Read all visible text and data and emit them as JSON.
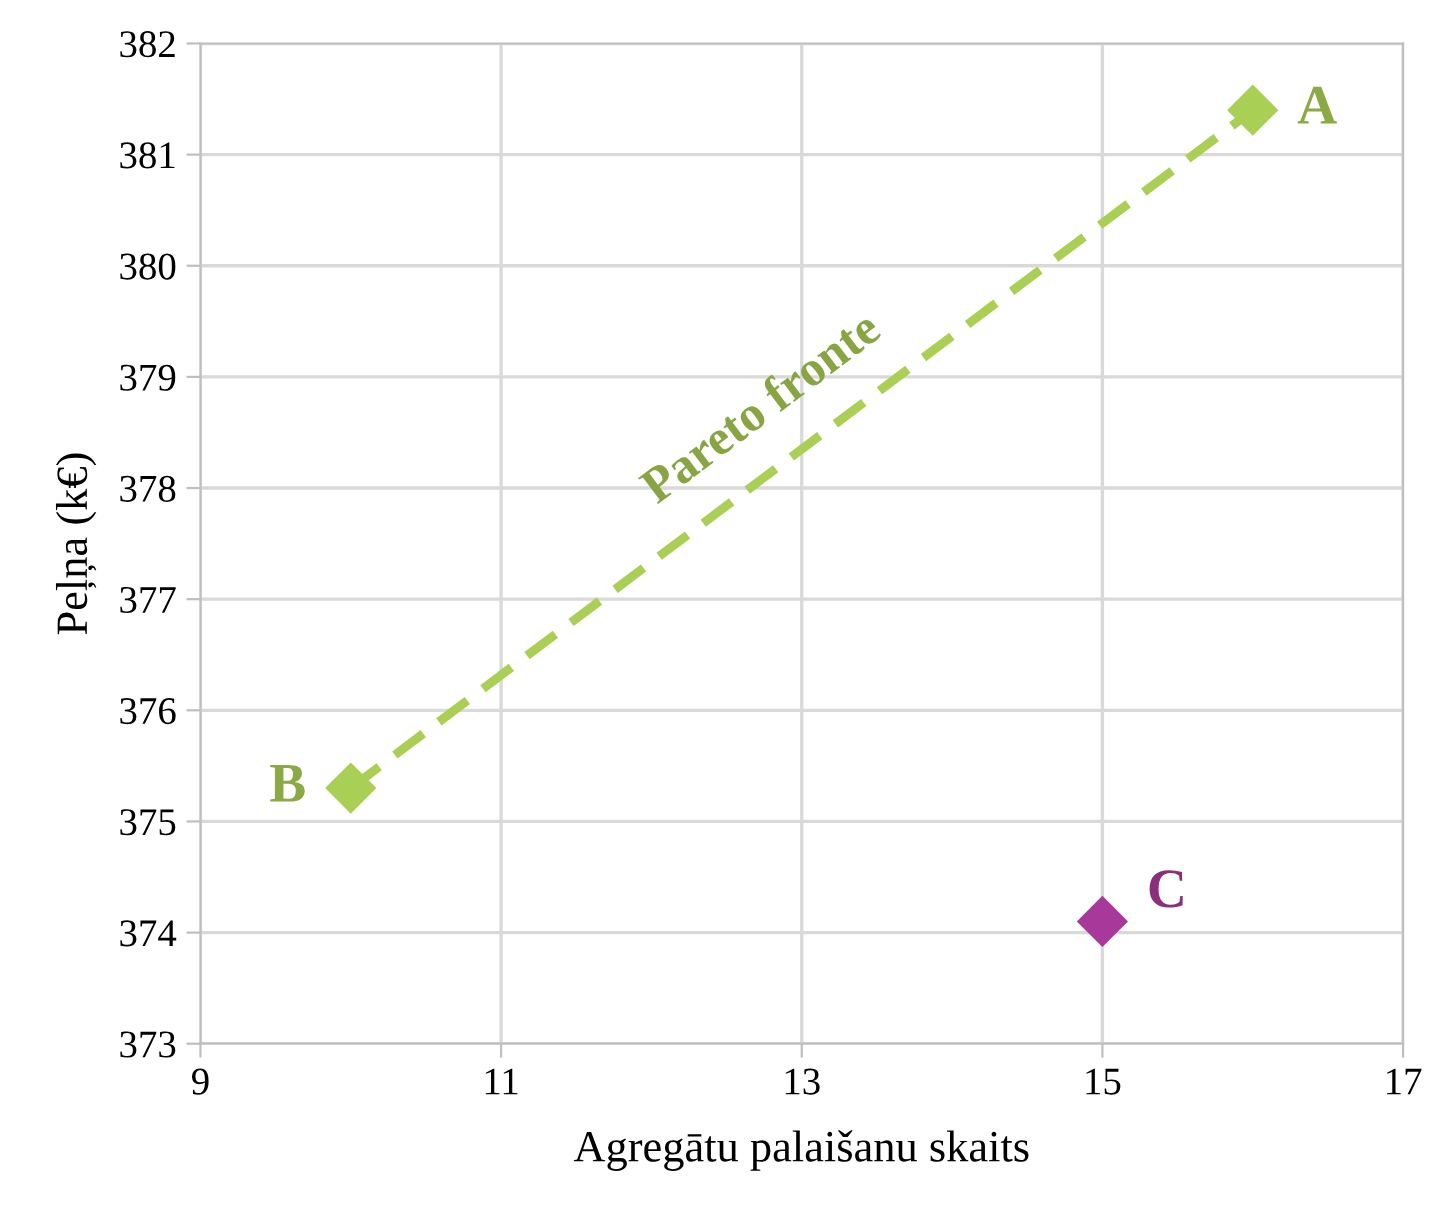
{
  "chart_data": {
    "type": "scatter",
    "xlabel": "Agregātu palaišanu skaits",
    "ylabel": "Peļņa (k€)",
    "xlim": [
      9,
      17
    ],
    "xticks": [
      9,
      11,
      13,
      15,
      17
    ],
    "ylim": [
      373,
      382
    ],
    "yticks": [
      373,
      374,
      375,
      376,
      377,
      378,
      379,
      380,
      381,
      382
    ],
    "grid": true,
    "series": [
      {
        "type": "line",
        "name": "Pareto fronte",
        "x": [
          10,
          16
        ],
        "values": [
          375.3,
          381.4
        ],
        "color": "#a9cf54",
        "line_style": "dashed",
        "marker": "none"
      },
      {
        "x": [
          10,
          16
        ],
        "values": [
          375.3,
          381.4
        ],
        "color": "#a9cf54",
        "marker": "diamond"
      },
      {
        "x": [
          15
        ],
        "values": [
          374.1
        ],
        "color": "#a8389a",
        "marker": "diamond"
      }
    ],
    "annotations": [
      {
        "text": "A",
        "x": 16,
        "y": 381.4
      },
      {
        "text": "B",
        "x": 10,
        "y": 375.3
      },
      {
        "text": "C",
        "x": 15,
        "y": 374.1
      }
    ]
  }
}
